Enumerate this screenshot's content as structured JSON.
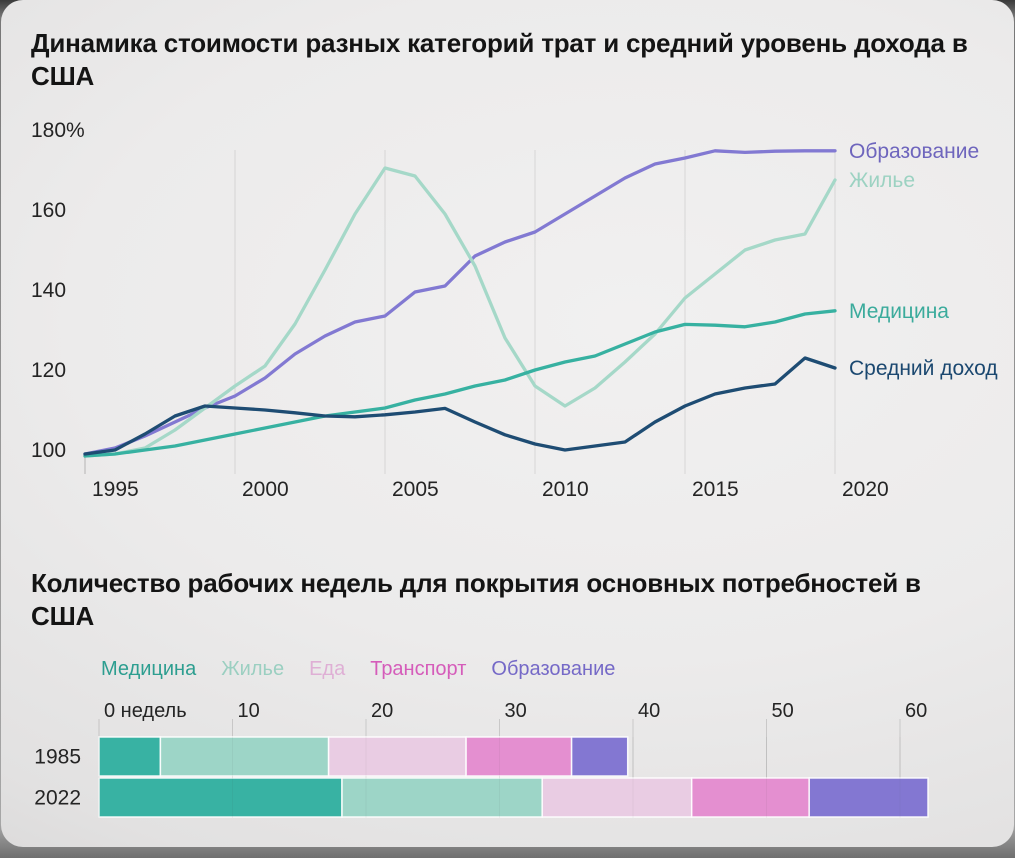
{
  "chart_data": [
    {
      "type": "line",
      "title": "Динамика стоимости разных категорий трат и средний уровень дохода в США",
      "x": [
        1995,
        1996,
        1997,
        1998,
        1999,
        2000,
        2001,
        2002,
        2003,
        2004,
        2005,
        2006,
        2007,
        2008,
        2009,
        2010,
        2011,
        2012,
        2013,
        2014,
        2015,
        2016,
        2017,
        2018,
        2019,
        2020
      ],
      "x_tick_years": [
        1995,
        2000,
        2005,
        2010,
        2015,
        2020
      ],
      "x_tick_labels": [
        "1995",
        "2000",
        "2005",
        "2010",
        "2015",
        "2020"
      ],
      "y_tick_values": [
        180,
        160,
        140,
        120,
        100
      ],
      "y_tick_labels": [
        "180%",
        "160",
        "140",
        "120",
        "100"
      ],
      "ylim": [
        100,
        180
      ],
      "grid": "vertical-only",
      "legend_position": "right-of-line-ends",
      "series": [
        {
          "key": "education",
          "name": "Образование",
          "color": "#8279d2",
          "label_color": "#6e65bd",
          "values": [
            99,
            100.5,
            103.5,
            107,
            110.5,
            113.5,
            118,
            124,
            128.5,
            132,
            133.5,
            139.5,
            141,
            148.5,
            152,
            154.5,
            159,
            163.5,
            168,
            171.5,
            173,
            174.8,
            174.4,
            174.7,
            174.8,
            174.8
          ]
        },
        {
          "key": "housing",
          "name": "Жилье",
          "color": "#a5d8c8",
          "label_color": "#9cd2c2",
          "values": [
            98.5,
            99,
            100.5,
            105,
            110.5,
            116,
            121,
            131.5,
            145,
            159,
            170.5,
            168.5,
            159,
            146,
            128,
            116,
            111,
            115.5,
            122,
            129,
            138,
            144,
            150,
            152.5,
            154,
            167.5
          ]
        },
        {
          "key": "medicine",
          "name": "Медицина",
          "color": "#37b1a1",
          "label_color": "#3bab9c",
          "values": [
            98.5,
            99,
            100,
            101,
            102.5,
            104,
            105.5,
            107,
            108.5,
            109.5,
            110.5,
            112.5,
            114,
            116,
            117.5,
            120,
            122,
            123.5,
            126.5,
            129.5,
            131.4,
            131.2,
            130.8,
            132,
            134,
            134.8
          ]
        },
        {
          "key": "income",
          "name": "Средний доход",
          "color": "#1e4c73",
          "label_color": "#1b4870",
          "values": [
            99,
            100,
            104,
            108.5,
            111,
            110.5,
            110,
            109.3,
            108.5,
            108.3,
            108.8,
            109.5,
            110.4,
            107,
            103.8,
            101.5,
            100,
            101,
            102,
            107,
            111,
            114,
            115.5,
            116.5,
            123,
            120.5
          ]
        }
      ]
    },
    {
      "type": "bar",
      "title": "Количество рабочих недель для покрытия основных потребностей в США",
      "orientation": "horizontal-stacked",
      "categories": [
        "1985",
        "2022"
      ],
      "x_tick_values": [
        0,
        10,
        20,
        30,
        40,
        50,
        60
      ],
      "x_tick_labels": [
        "0 недель",
        "10",
        "20",
        "30",
        "40",
        "50",
        "60"
      ],
      "xlim": [
        0,
        62
      ],
      "series": [
        {
          "key": "medicine",
          "name": "Медицина",
          "color": "#38b2a3",
          "legend_color": "#2d9e90",
          "values": [
            4.6,
            18.2
          ]
        },
        {
          "key": "housing",
          "name": "Жилье",
          "color": "#9dd5c7",
          "legend_color": "#9bcfc1",
          "values": [
            12.6,
            15.0
          ]
        },
        {
          "key": "food",
          "name": "Еда",
          "color": "#e9cce3",
          "legend_color": "#dfafd5",
          "values": [
            10.3,
            11.2
          ]
        },
        {
          "key": "transport",
          "name": "Транспорт",
          "color": "#e48fd0",
          "legend_color": "#d55cba",
          "values": [
            7.9,
            8.8
          ]
        },
        {
          "key": "education",
          "name": "Образование",
          "color": "#8377d2",
          "legend_color": "#7569c7",
          "values": [
            4.2,
            8.9
          ]
        }
      ]
    }
  ]
}
